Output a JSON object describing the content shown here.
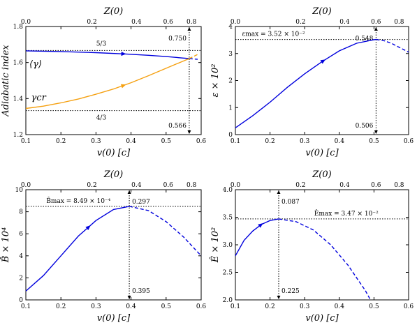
{
  "colors": {
    "blue": "#0000dd",
    "orange": "#f5a010",
    "black": "#000000",
    "white": "#ffffff"
  },
  "chart_data": [
    {
      "type": "line",
      "ylabel": "Adiabatic index",
      "xlabel": "v(0) [c]",
      "top_label": "Z(0)",
      "xlim": [
        0.1,
        0.6
      ],
      "ylim": [
        1.2,
        1.8
      ],
      "xticks": [
        "0.1",
        "0.2",
        "0.3",
        "0.4",
        "0.5",
        "0.6"
      ],
      "yticks": [
        "1.2",
        "1.4",
        "1.6",
        "1.8"
      ],
      "top_ticks": [
        "0.0",
        "0.2",
        "0.4",
        "0.6",
        "0.8"
      ],
      "top_tick_x": [
        0.1,
        0.2883,
        0.4154,
        0.5059,
        0.5725
      ],
      "series": [
        {
          "name": "⟨γ⟩",
          "color": "#0000dd",
          "x": [
            0.1,
            0.2,
            0.3,
            0.38,
            0.45,
            0.5,
            0.566
          ],
          "y": [
            1.665,
            1.661,
            1.655,
            1.648,
            1.64,
            1.633,
            1.622
          ],
          "dashed_x": [
            0.566,
            0.59
          ],
          "dashed_y": [
            1.622,
            1.618
          ],
          "arrow_at": 0.38
        },
        {
          "name": "γcr",
          "color": "#f5a010",
          "x": [
            0.1,
            0.15,
            0.2,
            0.25,
            0.3,
            0.35,
            0.4,
            0.45,
            0.5,
            0.566
          ],
          "y": [
            1.345,
            1.358,
            1.376,
            1.398,
            1.424,
            1.453,
            1.488,
            1.527,
            1.568,
            1.622
          ],
          "dashed_x": [
            0.566,
            0.59
          ],
          "dashed_y": [
            1.622,
            1.645
          ],
          "arrow_at": 0.38
        }
      ],
      "hlines": [
        {
          "y": 1.6667,
          "label": "5/3"
        },
        {
          "y": 1.3333,
          "label": "4/3"
        }
      ],
      "vline": {
        "x": 0.566,
        "top_label": "0.750",
        "bottom_label": "0.566"
      },
      "curve_labels": [
        {
          "text": "⟨γ⟩",
          "x": 0.11,
          "y": 1.575
        },
        {
          "text": "γcr",
          "x": 0.115,
          "y": 1.39
        }
      ]
    },
    {
      "type": "line",
      "ylabel": "ε × 10²",
      "xlabel": "v(0) [c]",
      "top_label": "Z(0)",
      "xlim": [
        0.1,
        0.6
      ],
      "ylim": [
        0,
        4
      ],
      "xticks": [
        "0.1",
        "0.2",
        "0.3",
        "0.4",
        "0.5",
        "0.6"
      ],
      "yticks": [
        "0",
        "1",
        "2",
        "3",
        "4"
      ],
      "top_ticks": [
        "0.0",
        "0.2",
        "0.4",
        "0.6",
        "0.8"
      ],
      "top_tick_x": [
        0.1,
        0.2883,
        0.4154,
        0.5059,
        0.5725
      ],
      "series": [
        {
          "name": "",
          "color": "#0000dd",
          "x": [
            0.1,
            0.15,
            0.2,
            0.25,
            0.3,
            0.35,
            0.4,
            0.45,
            0.5,
            0.506
          ],
          "y": [
            0.25,
            0.7,
            1.2,
            1.75,
            2.25,
            2.7,
            3.1,
            3.38,
            3.51,
            3.52
          ],
          "dashed_x": [
            0.506,
            0.53,
            0.55,
            0.57,
            0.6
          ],
          "dashed_y": [
            3.52,
            3.47,
            3.38,
            3.25,
            3.05
          ],
          "arrow_at": 0.355
        }
      ],
      "hlines": [
        {
          "y": 3.52,
          "label": ""
        }
      ],
      "vline": {
        "x": 0.506,
        "top_label": "0.548",
        "bottom_label": "0.506"
      },
      "max_label": "εmax = 3.52 × 10⁻²"
    },
    {
      "type": "line",
      "ylabel": "B̂ × 10⁴",
      "xlabel": "v(0) [c]",
      "top_label": "Z(0)",
      "xlim": [
        0.1,
        0.6
      ],
      "ylim": [
        0,
        10
      ],
      "xticks": [
        "0.1",
        "0.2",
        "0.3",
        "0.4",
        "0.5",
        "0.6"
      ],
      "yticks": [
        "0",
        "2",
        "4",
        "6",
        "8",
        "10"
      ],
      "top_ticks": [
        "0.0",
        "0.2",
        "0.4",
        "0.6",
        "0.8"
      ],
      "top_tick_x": [
        0.1,
        0.2883,
        0.4154,
        0.5059,
        0.5725
      ],
      "series": [
        {
          "name": "",
          "color": "#0000dd",
          "x": [
            0.1,
            0.15,
            0.2,
            0.25,
            0.3,
            0.35,
            0.395
          ],
          "y": [
            0.8,
            2.2,
            4.0,
            5.8,
            7.2,
            8.2,
            8.49
          ],
          "dashed_x": [
            0.395,
            0.45,
            0.5,
            0.55,
            0.6
          ],
          "dashed_y": [
            8.49,
            8.1,
            7.1,
            5.7,
            4.0
          ],
          "arrow_at": 0.28
        }
      ],
      "hlines": [
        {
          "y": 8.49,
          "label": ""
        }
      ],
      "vline": {
        "x": 0.395,
        "top_label": "0.297",
        "bottom_label": "0.395"
      },
      "max_label": "B̂max = 8.49 × 10⁻⁴"
    },
    {
      "type": "line",
      "ylabel": "Ê × 10²",
      "xlabel": "v(0) [c]",
      "top_label": "Z(0)",
      "xlim": [
        0.1,
        0.6
      ],
      "ylim": [
        2.0,
        4.0
      ],
      "xticks": [
        "0.1",
        "0.2",
        "0.3",
        "0.4",
        "0.5",
        "0.6"
      ],
      "yticks": [
        "2.0",
        "2.5",
        "3.0",
        "3.5",
        "4.0"
      ],
      "top_ticks": [
        "0.0",
        "0.2",
        "0.4",
        "0.6",
        "0.8"
      ],
      "top_tick_x": [
        0.1,
        0.2883,
        0.4154,
        0.5059,
        0.5725
      ],
      "series": [
        {
          "name": "",
          "color": "#0000dd",
          "x": [
            0.1,
            0.125,
            0.15,
            0.175,
            0.2,
            0.225
          ],
          "y": [
            2.8,
            3.08,
            3.25,
            3.37,
            3.44,
            3.47
          ],
          "dashed_x": [
            0.225,
            0.275,
            0.325,
            0.375,
            0.425,
            0.475,
            0.49
          ],
          "dashed_y": [
            3.47,
            3.42,
            3.27,
            3.0,
            2.63,
            2.17,
            2.0
          ],
          "arrow_at": 0.175
        }
      ],
      "hlines": [
        {
          "y": 3.47,
          "label": ""
        }
      ],
      "vline": {
        "x": 0.225,
        "top_label": "0.087",
        "bottom_label": "0.225"
      },
      "max_label": "Êmax = 3.47 × 10⁻²"
    }
  ]
}
